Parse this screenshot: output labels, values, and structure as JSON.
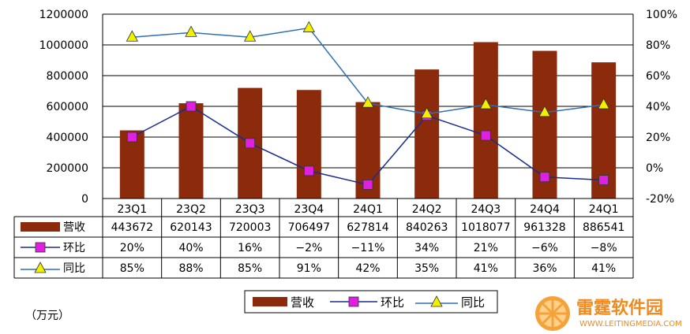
{
  "chart_data": {
    "type": "bar",
    "categories": [
      "23Q1",
      "23Q2",
      "23Q3",
      "23Q4",
      "24Q1",
      "24Q2",
      "24Q3",
      "24Q4",
      "24Q1"
    ],
    "series": [
      {
        "name": "营收",
        "kind": "bar",
        "axis": "left",
        "color": "#8b2b0c",
        "values": [
          443672,
          620143,
          720003,
          706497,
          627814,
          840263,
          1018077,
          961328,
          886541
        ]
      },
      {
        "name": "环比",
        "kind": "line",
        "axis": "right",
        "color": "#1a2b8f",
        "marker_color": "#e020e0",
        "values": [
          20,
          40,
          16,
          -2,
          -11,
          34,
          21,
          -6,
          -8
        ]
      },
      {
        "name": "同比",
        "kind": "line",
        "axis": "right",
        "color": "#2f6fb5",
        "marker_color": "#f0f000",
        "values": [
          85,
          88,
          85,
          91,
          42,
          35,
          41,
          36,
          41
        ]
      }
    ],
    "table": {
      "rows": [
        {
          "label": "营收",
          "cells": [
            "443672",
            "620143",
            "720003",
            "706497",
            "627814",
            "840263",
            "1018077",
            "961328",
            "886541"
          ]
        },
        {
          "label": "环比",
          "cells": [
            "20%",
            "40%",
            "16%",
            "−2%",
            "−11%",
            "34%",
            "21%",
            "−6%",
            "−8%"
          ]
        },
        {
          "label": "同比",
          "cells": [
            "85%",
            "88%",
            "85%",
            "91%",
            "42%",
            "35%",
            "41%",
            "36%",
            "41%"
          ]
        }
      ]
    },
    "y_left": {
      "min": 0,
      "max": 1200000,
      "ticks": [
        "0",
        "200000",
        "400000",
        "600000",
        "800000",
        "1000000",
        "1200000"
      ]
    },
    "y_right": {
      "min": -20,
      "max": 100,
      "ticks": [
        "-20%",
        "0%",
        "20%",
        "40%",
        "60%",
        "80%",
        "100%"
      ]
    },
    "unit_label": "（万元）",
    "grid": true,
    "legend": {
      "placement": "bottom",
      "items": [
        "营收",
        "环比",
        "同比"
      ]
    }
  },
  "watermark": {
    "name": "雷霆软件园",
    "site": "WWW.LEITINGMEDIA.COM"
  }
}
